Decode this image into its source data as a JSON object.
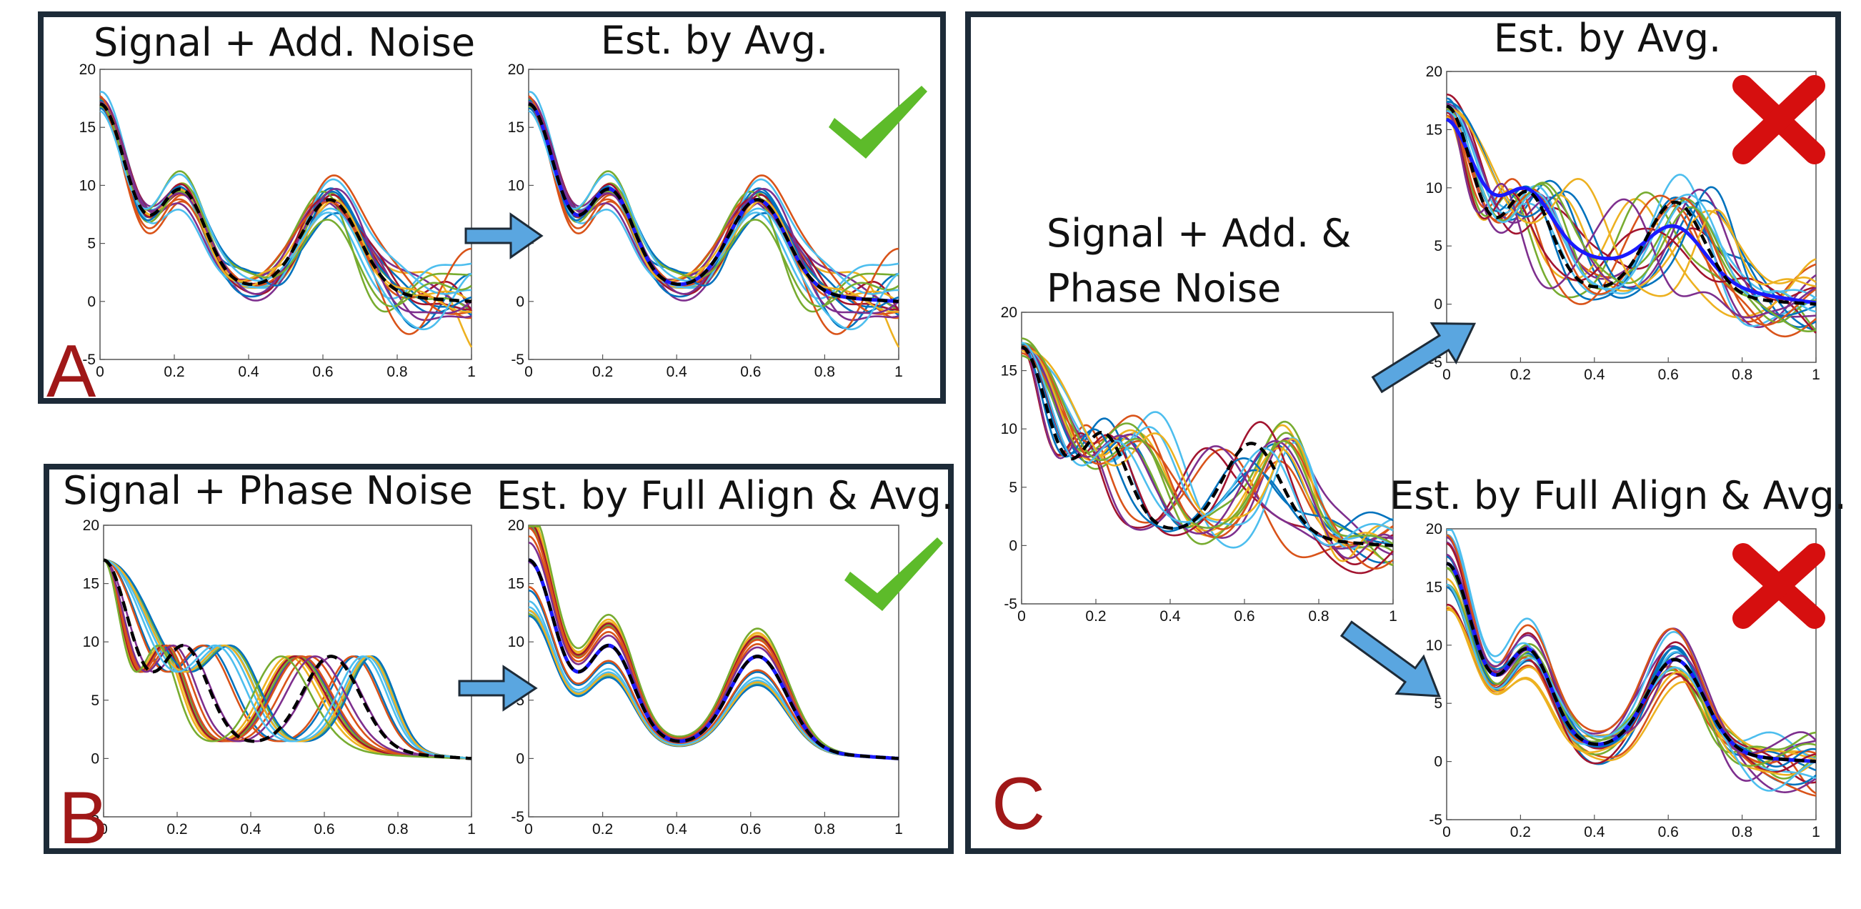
{
  "colors": {
    "frame": "#1d2b38",
    "panel_label": "#a01818",
    "arrow_fill": "#5aa6e0",
    "arrow_stroke": "#1d2b38",
    "check": "#5dbb2a",
    "cross": "#d60f0f",
    "truth": "#000000",
    "estimate": "#1a1aff",
    "curves": [
      "#0072bd",
      "#d95319",
      "#edb120",
      "#7e2f8e",
      "#77ac30",
      "#4dbeee",
      "#a2142f"
    ]
  },
  "panels": {
    "A": {
      "label": "A",
      "titles": [
        "Signal + Add. Noise",
        "Est. by Avg."
      ]
    },
    "B": {
      "label": "B",
      "titles": [
        "Signal + Phase Noise",
        "Est. by Full Align & Avg."
      ]
    },
    "C": {
      "label": "C",
      "titles": [
        "Signal + Add. &",
        "Phase  Noise",
        "Est. by Avg.",
        "Est. by Full Align & Avg."
      ]
    }
  },
  "axis": {
    "xticks": [
      "0",
      "0.2",
      "0.4",
      "0.6",
      "0.8",
      "1"
    ],
    "yticks": [
      "-5",
      "0",
      "5",
      "10",
      "15",
      "20"
    ],
    "xlim": [
      0,
      1
    ],
    "ylim": [
      -5,
      20
    ]
  },
  "marks": {
    "A": "check-icon",
    "B": "check-icon",
    "C_top": "cross-icon",
    "C_bottom": "cross-icon"
  },
  "chart_data": [
    {
      "type": "line",
      "title": "Signal + Add. Noise",
      "xlim": [
        0,
        1
      ],
      "ylim": [
        -5,
        20
      ],
      "series_count": 20,
      "legend": "none"
    },
    {
      "type": "line",
      "title": "Est. by Avg.",
      "xlim": [
        0,
        1
      ],
      "ylim": [
        -5,
        20
      ],
      "series_count": 20,
      "legend": "none"
    },
    {
      "type": "line",
      "title": "Signal + Phase Noise",
      "xlim": [
        0,
        1
      ],
      "ylim": [
        -5,
        20
      ],
      "series_count": 20,
      "legend": "none"
    },
    {
      "type": "line",
      "title": "Est. by Full Align & Avg.",
      "xlim": [
        0,
        1
      ],
      "ylim": [
        -5,
        20
      ],
      "series_count": 20,
      "legend": "none"
    },
    {
      "type": "line",
      "title": "Signal + Add. & Phase  Noise",
      "xlim": [
        0,
        1
      ],
      "ylim": [
        -5,
        20
      ],
      "series_count": 20,
      "legend": "none"
    },
    {
      "type": "line",
      "title": "Est. by Avg.",
      "xlim": [
        0,
        1
      ],
      "ylim": [
        -5,
        20
      ],
      "series_count": 20,
      "legend": "none"
    },
    {
      "type": "line",
      "title": "Est. by Full Align & Avg.",
      "xlim": [
        0,
        1
      ],
      "ylim": [
        -5,
        20
      ],
      "series_count": 20,
      "legend": "none"
    }
  ]
}
